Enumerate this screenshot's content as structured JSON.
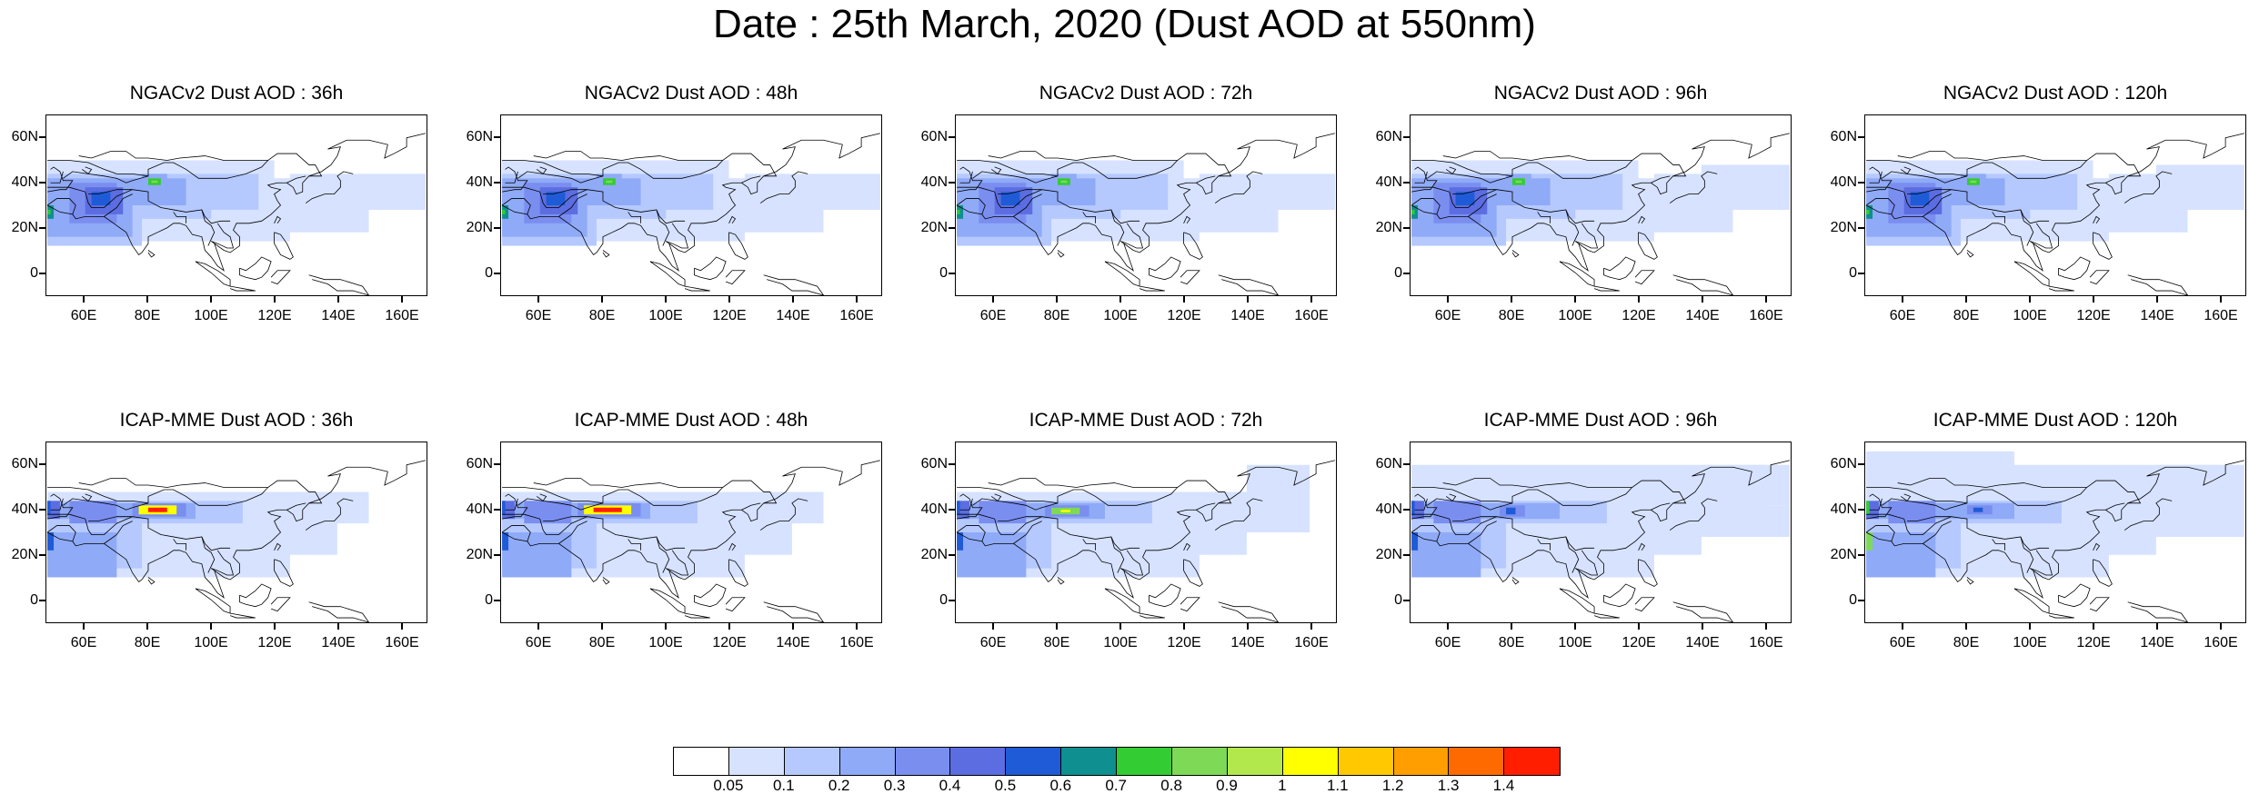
{
  "title": "Date : 25th March, 2020 (Dust AOD at 550nm)",
  "panels": [
    {
      "model": "NGACv2",
      "title": "NGACv2 Dust AOD : 36h",
      "lead": "36h"
    },
    {
      "model": "NGACv2",
      "title": "NGACv2 Dust AOD : 48h",
      "lead": "48h"
    },
    {
      "model": "NGACv2",
      "title": "NGACv2 Dust AOD : 72h",
      "lead": "72h"
    },
    {
      "model": "NGACv2",
      "title": "NGACv2 Dust AOD : 96h",
      "lead": "96h"
    },
    {
      "model": "NGACv2",
      "title": "NGACv2 Dust AOD : 120h",
      "lead": "120h"
    },
    {
      "model": "ICAP-MME",
      "title": "ICAP-MME Dust AOD : 36h",
      "lead": "36h"
    },
    {
      "model": "ICAP-MME",
      "title": "ICAP-MME Dust AOD : 48h",
      "lead": "48h"
    },
    {
      "model": "ICAP-MME",
      "title": "ICAP-MME Dust AOD : 72h",
      "lead": "72h"
    },
    {
      "model": "ICAP-MME",
      "title": "ICAP-MME Dust AOD : 96h",
      "lead": "96h"
    },
    {
      "model": "ICAP-MME",
      "title": "ICAP-MME Dust AOD : 120h",
      "lead": "120h"
    }
  ],
  "axes": {
    "lat_labels": [
      "60N",
      "40N",
      "20N",
      "0"
    ],
    "lat_values": [
      60,
      40,
      20,
      0
    ],
    "lon_labels": [
      "60E",
      "80E",
      "100E",
      "120E",
      "140E",
      "160E"
    ],
    "lon_values": [
      60,
      80,
      100,
      120,
      140,
      160
    ],
    "lon_range": [
      48,
      168
    ],
    "lat_range": [
      -10,
      70
    ]
  },
  "colorbar": {
    "labels": [
      "0.05",
      "0.1",
      "0.2",
      "0.3",
      "0.4",
      "0.5",
      "0.6",
      "0.7",
      "0.8",
      "0.9",
      "1",
      "1.1",
      "1.2",
      "1.3",
      "1.4"
    ],
    "colors": [
      "#ffffff",
      "#d6e2ff",
      "#b5c9ff",
      "#8faaf7",
      "#7a8ef0",
      "#5b6de0",
      "#1f5bd6",
      "#0f8f8f",
      "#33cc33",
      "#7ed957",
      "#b3e84d",
      "#ffff00",
      "#ffc800",
      "#ff9e00",
      "#ff6a00",
      "#ff1e00"
    ]
  }
}
